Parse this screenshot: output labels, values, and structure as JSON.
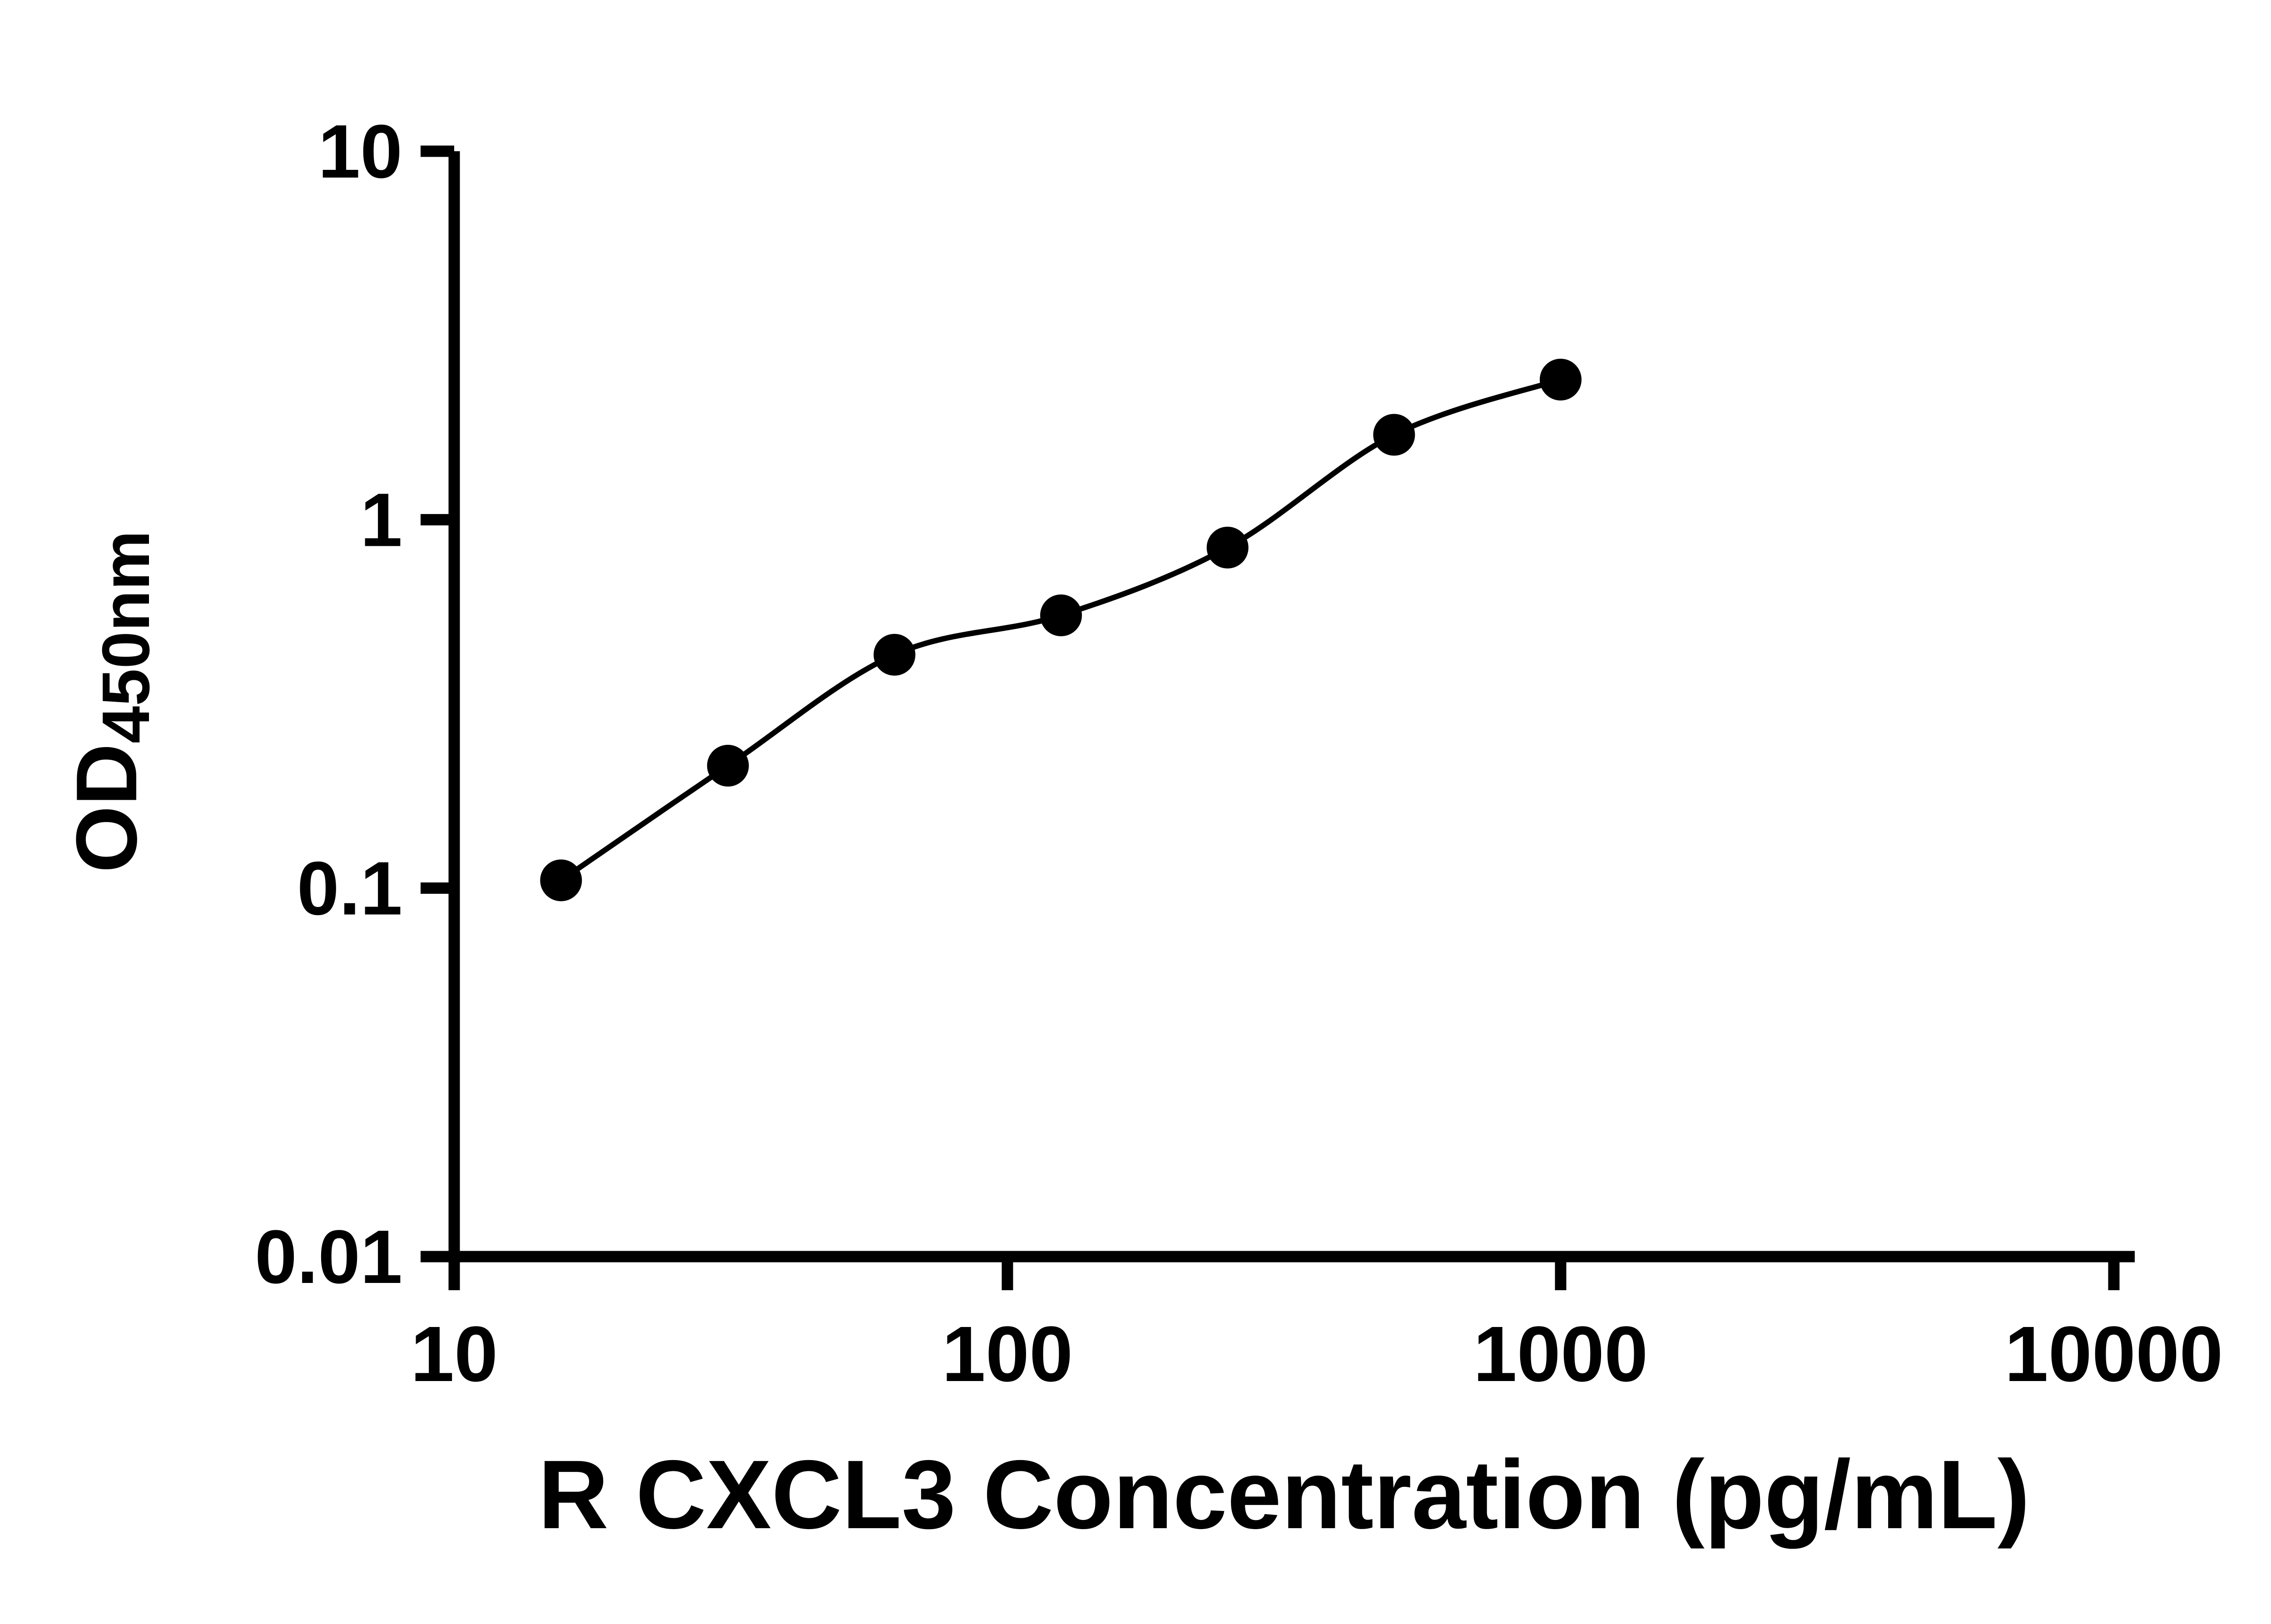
{
  "figure": {
    "xlabel": "R CXCL3 Concentration (pg/mL)",
    "ylabel_main": "OD",
    "ylabel_sub": "450nm"
  },
  "chart_data": {
    "type": "scatter",
    "title": "",
    "xlabel": "R CXCL3 Concentration (pg/mL)",
    "ylabel": "OD450nm",
    "xscale": "log",
    "yscale": "log",
    "xlim": [
      10,
      10000
    ],
    "ylim": [
      0.01,
      10
    ],
    "x": [
      15.6,
      31.25,
      62.5,
      125,
      250,
      500,
      1000
    ],
    "y": [
      0.105,
      0.215,
      0.43,
      0.55,
      0.84,
      1.7,
      2.4
    ],
    "fit_line_through_points": true,
    "grid": false,
    "legend": false,
    "xticks": {
      "values": [
        10,
        100,
        1000,
        10000
      ],
      "labels": [
        "10",
        "100",
        "1000",
        "10000"
      ]
    },
    "yticks": {
      "values": [
        0.01,
        0.1,
        1,
        10
      ],
      "labels": [
        "0.01",
        "0.1",
        "1",
        "10"
      ]
    },
    "colors": {
      "axis": "#000000",
      "marker": "#000000",
      "line": "#000000",
      "background": "#ffffff"
    }
  }
}
